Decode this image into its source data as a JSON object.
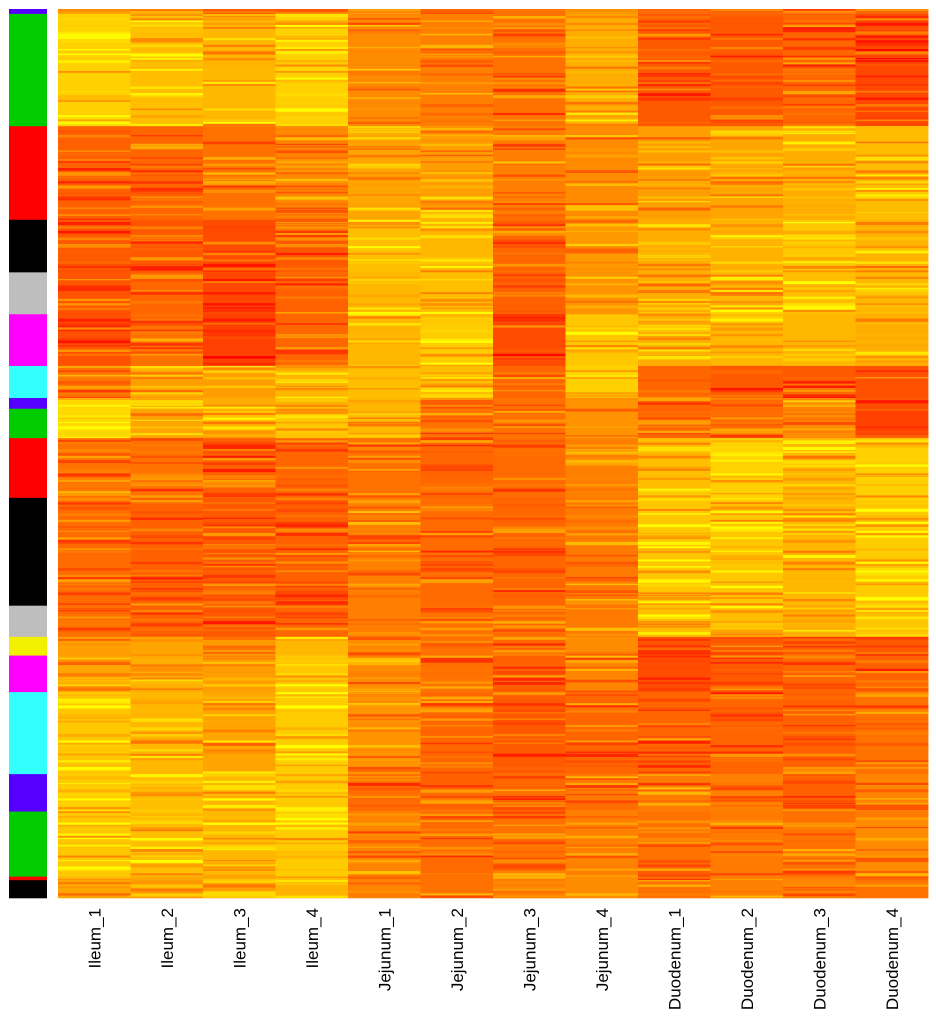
{
  "chart_data": {
    "type": "heatmap",
    "columns": [
      "Ileum_1",
      "Ileum_2",
      "Ileum_3",
      "Ileum_4",
      "Jejunum_1",
      "Jejunum_2",
      "Jejunum_3",
      "Jejunum_4",
      "Duodenum_1",
      "Duodenum_2",
      "Duodenum_3",
      "Duodenum_4"
    ],
    "color_scale": [
      "#ff0000",
      "#ff7f00",
      "#ffff00"
    ],
    "row_groups": [
      {
        "size": 0.55,
        "color": "#5500ff",
        "values": [
          0.55,
          0.5,
          0.35,
          0.5,
          0.65,
          0.4,
          0.45,
          0.6,
          0.4,
          0.45,
          0.5,
          0.4
        ]
      },
      {
        "size": 12.6,
        "color": "#00cc00",
        "values": [
          0.82,
          0.75,
          0.72,
          0.82,
          0.55,
          0.5,
          0.45,
          0.68,
          0.35,
          0.35,
          0.4,
          0.28
        ]
      },
      {
        "size": 10.5,
        "color": "#ff0000",
        "values": [
          0.38,
          0.4,
          0.45,
          0.52,
          0.65,
          0.62,
          0.5,
          0.55,
          0.62,
          0.65,
          0.68,
          0.74
        ]
      },
      {
        "size": 5.9,
        "color": "#000000",
        "values": [
          0.35,
          0.35,
          0.3,
          0.35,
          0.75,
          0.72,
          0.4,
          0.6,
          0.68,
          0.7,
          0.78,
          0.7
        ]
      },
      {
        "size": 4.7,
        "color": "#bebebe",
        "values": [
          0.33,
          0.4,
          0.28,
          0.38,
          0.72,
          0.75,
          0.38,
          0.58,
          0.68,
          0.72,
          0.75,
          0.72
        ]
      },
      {
        "size": 5.8,
        "color": "#ff00ff",
        "values": [
          0.32,
          0.45,
          0.25,
          0.4,
          0.72,
          0.8,
          0.3,
          0.78,
          0.68,
          0.72,
          0.72,
          0.68
        ]
      },
      {
        "size": 3.6,
        "color": "#33ffff",
        "values": [
          0.45,
          0.62,
          0.62,
          0.72,
          0.75,
          0.75,
          0.4,
          0.82,
          0.4,
          0.35,
          0.35,
          0.32
        ]
      },
      {
        "size": 1.2,
        "color": "#5500ff",
        "values": [
          0.85,
          0.65,
          0.68,
          0.78,
          0.72,
          0.45,
          0.45,
          0.58,
          0.4,
          0.42,
          0.55,
          0.3
        ]
      },
      {
        "size": 3.3,
        "color": "#00cc00",
        "values": [
          0.85,
          0.65,
          0.68,
          0.78,
          0.72,
          0.45,
          0.45,
          0.58,
          0.4,
          0.42,
          0.55,
          0.25
        ]
      },
      {
        "size": 6.7,
        "color": "#ff0000",
        "values": [
          0.45,
          0.45,
          0.38,
          0.4,
          0.45,
          0.4,
          0.42,
          0.5,
          0.75,
          0.82,
          0.72,
          0.82
        ]
      },
      {
        "size": 12.1,
        "color": "#000000",
        "values": [
          0.42,
          0.38,
          0.35,
          0.38,
          0.5,
          0.42,
          0.4,
          0.48,
          0.78,
          0.78,
          0.72,
          0.8
        ]
      },
      {
        "size": 3.5,
        "color": "#bebebe",
        "values": [
          0.45,
          0.38,
          0.35,
          0.4,
          0.5,
          0.45,
          0.4,
          0.48,
          0.75,
          0.75,
          0.7,
          0.78
        ]
      },
      {
        "size": 2.1,
        "color": "#f0f000",
        "values": [
          0.62,
          0.65,
          0.6,
          0.72,
          0.55,
          0.45,
          0.4,
          0.55,
          0.32,
          0.35,
          0.42,
          0.35
        ]
      },
      {
        "size": 4.1,
        "color": "#ff00ff",
        "values": [
          0.65,
          0.68,
          0.62,
          0.78,
          0.55,
          0.45,
          0.38,
          0.52,
          0.3,
          0.35,
          0.4,
          0.38
        ]
      },
      {
        "size": 9.2,
        "color": "#33ffff",
        "values": [
          0.78,
          0.72,
          0.65,
          0.8,
          0.58,
          0.4,
          0.35,
          0.4,
          0.4,
          0.4,
          0.38,
          0.45
        ]
      },
      {
        "size": 4.2,
        "color": "#5500ff",
        "values": [
          0.8,
          0.75,
          0.72,
          0.8,
          0.42,
          0.38,
          0.4,
          0.48,
          0.48,
          0.5,
          0.38,
          0.52
        ]
      },
      {
        "size": 7.3,
        "color": "#00cc00",
        "values": [
          0.78,
          0.75,
          0.72,
          0.8,
          0.52,
          0.42,
          0.45,
          0.5,
          0.45,
          0.48,
          0.45,
          0.55
        ]
      },
      {
        "size": 0.4,
        "color": "#ff0000",
        "values": [
          0.72,
          0.65,
          0.65,
          0.75,
          0.5,
          0.45,
          0.5,
          0.55,
          0.45,
          0.5,
          0.5,
          0.4
        ]
      },
      {
        "size": 2.0,
        "color": "#000000",
        "values": [
          0.65,
          0.6,
          0.62,
          0.7,
          0.52,
          0.45,
          0.5,
          0.55,
          0.45,
          0.5,
          0.52,
          0.45
        ]
      }
    ]
  }
}
